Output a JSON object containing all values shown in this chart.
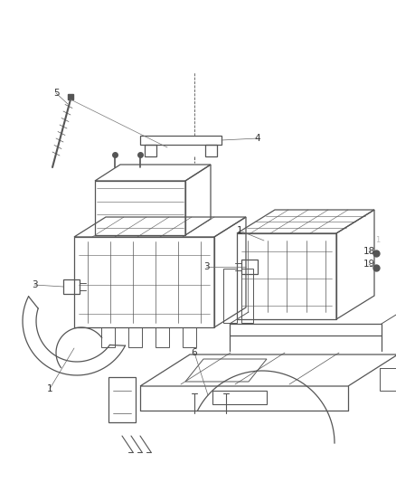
{
  "bg_color": "#ffffff",
  "fig_width": 4.38,
  "fig_height": 5.33,
  "dpi": 100,
  "line_color": "#555555",
  "label_color": "#333333",
  "label_fontsize": 7.5
}
